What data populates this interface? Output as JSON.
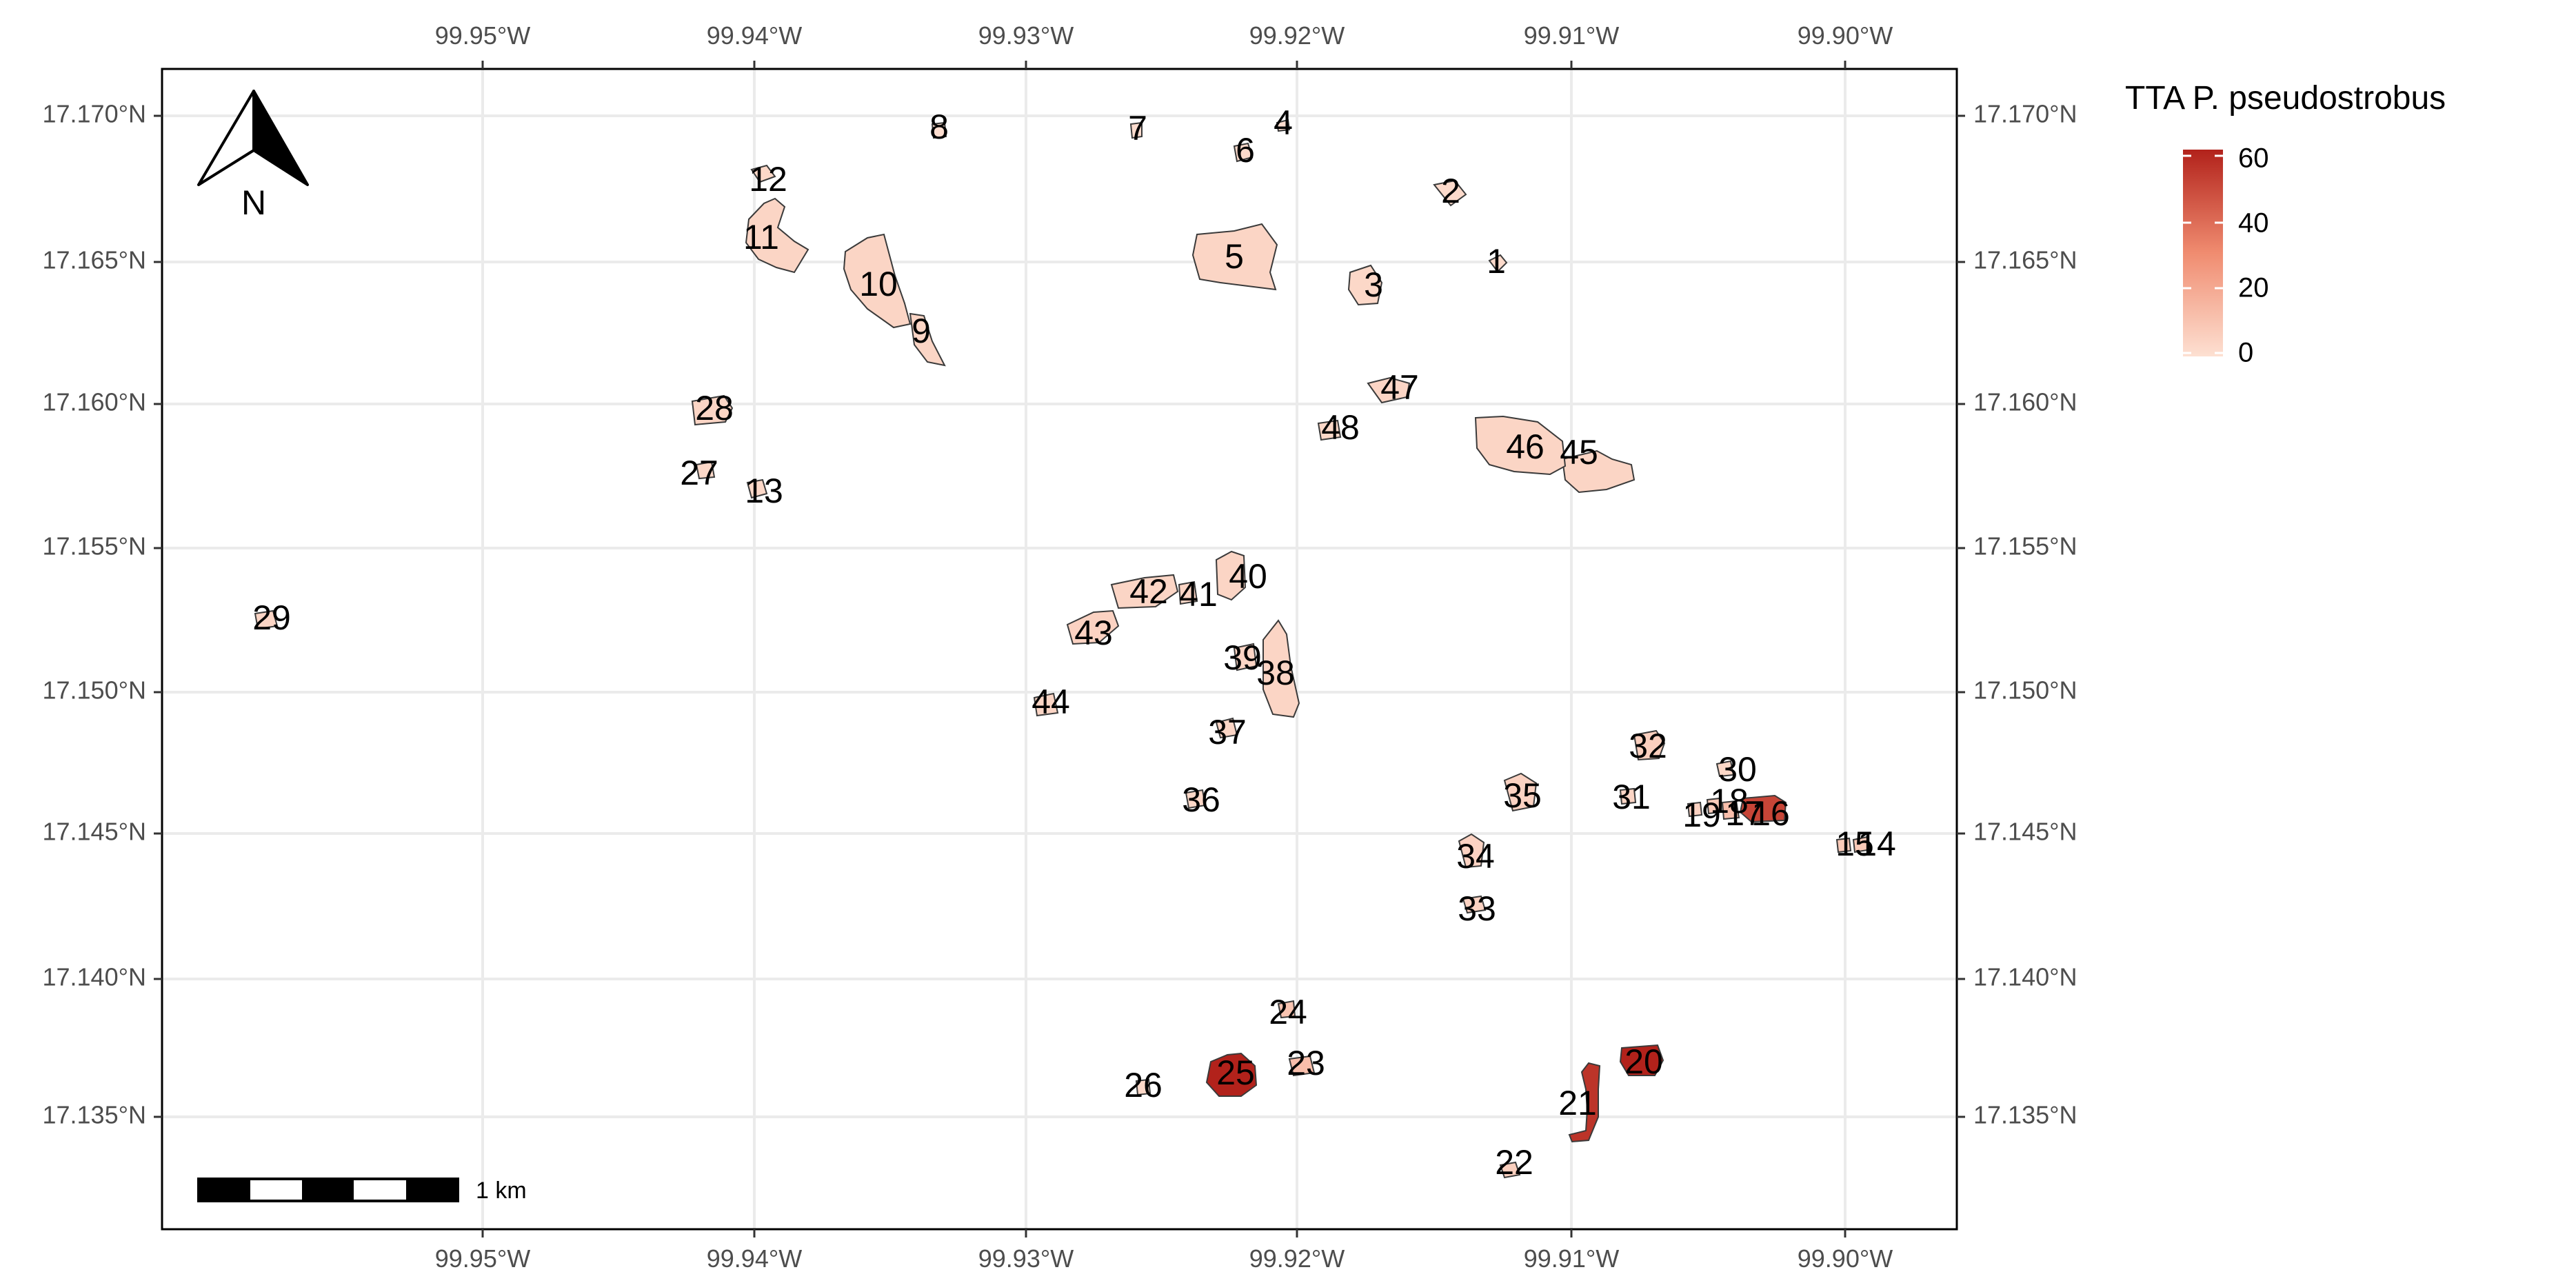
{
  "map": {
    "axis_ticks": {
      "x_labels": [
        "99.95°W",
        "99.94°W",
        "99.93°W",
        "99.92°W",
        "99.91°W",
        "99.90°W"
      ],
      "y_labels": [
        "17.170°N",
        "17.165°N",
        "17.160°N",
        "17.155°N",
        "17.150°N",
        "17.145°N",
        "17.140°N",
        "17.135°N"
      ]
    },
    "north_arrow": {
      "letter": "N"
    },
    "scale_bar": {
      "label": "1 km"
    },
    "legend": {
      "title": "TTA P. pseudostrobus",
      "ticks": [
        "60",
        "40",
        "20",
        "0"
      ],
      "color_low": "#fde0d2",
      "color_high": "#b2221b"
    },
    "colors": {
      "border": "#000000",
      "grid": "#ebebeb",
      "tick_text": "#4d4d4d",
      "polygon_stroke": "#3a3a3a"
    },
    "polygons": [
      {
        "id": "1",
        "tta": 2
      },
      {
        "id": "2",
        "tta": 2
      },
      {
        "id": "3",
        "tta": 3
      },
      {
        "id": "4",
        "tta": 1
      },
      {
        "id": "5",
        "tta": 4
      },
      {
        "id": "6",
        "tta": 2
      },
      {
        "id": "7",
        "tta": 1
      },
      {
        "id": "8",
        "tta": 1
      },
      {
        "id": "9",
        "tta": 4
      },
      {
        "id": "10",
        "tta": 4
      },
      {
        "id": "11",
        "tta": 4
      },
      {
        "id": "12",
        "tta": 3
      },
      {
        "id": "13",
        "tta": 3
      },
      {
        "id": "14",
        "tta": 8
      },
      {
        "id": "15",
        "tta": 8
      },
      {
        "id": "16",
        "tta": 50
      },
      {
        "id": "17",
        "tta": 12
      },
      {
        "id": "18",
        "tta": 8
      },
      {
        "id": "19",
        "tta": 5
      },
      {
        "id": "20",
        "tta": 60
      },
      {
        "id": "21",
        "tta": 55
      },
      {
        "id": "22",
        "tta": 6
      },
      {
        "id": "23",
        "tta": 12
      },
      {
        "id": "24",
        "tta": 10
      },
      {
        "id": "25",
        "tta": 62
      },
      {
        "id": "26",
        "tta": 3
      },
      {
        "id": "27",
        "tta": 3
      },
      {
        "id": "28",
        "tta": 4
      },
      {
        "id": "29",
        "tta": 4
      },
      {
        "id": "30",
        "tta": 3
      },
      {
        "id": "31",
        "tta": 4
      },
      {
        "id": "32",
        "tta": 6
      },
      {
        "id": "33",
        "tta": 5
      },
      {
        "id": "34",
        "tta": 5
      },
      {
        "id": "35",
        "tta": 5
      },
      {
        "id": "36",
        "tta": 3
      },
      {
        "id": "37",
        "tta": 4
      },
      {
        "id": "38",
        "tta": 4
      },
      {
        "id": "39",
        "tta": 4
      },
      {
        "id": "40",
        "tta": 4
      },
      {
        "id": "41",
        "tta": 4
      },
      {
        "id": "42",
        "tta": 4
      },
      {
        "id": "43",
        "tta": 5
      },
      {
        "id": "44",
        "tta": 4
      },
      {
        "id": "45",
        "tta": 4
      },
      {
        "id": "46",
        "tta": 4
      },
      {
        "id": "47",
        "tta": 4
      },
      {
        "id": "48",
        "tta": 3
      }
    ]
  }
}
